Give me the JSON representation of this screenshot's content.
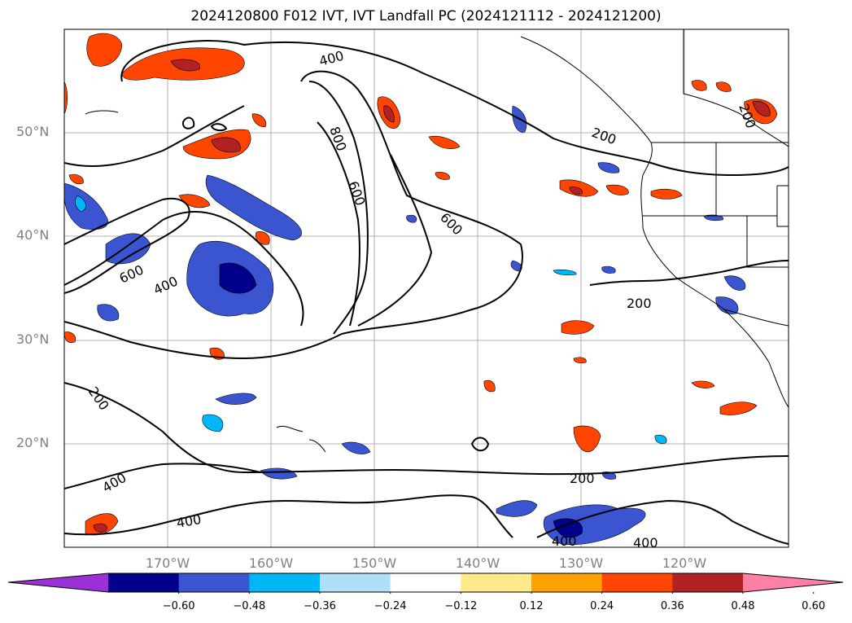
{
  "title": "2024120800 F012 IVT, IVT Landfall PC (2024121112 - 2024121200)",
  "lat_labels": [
    "50°N",
    "40°N",
    "30°N",
    "20°N"
  ],
  "lon_labels": [
    "170°W",
    "160°W",
    "150°W",
    "140°W",
    "130°W",
    "120°W"
  ],
  "contour_labels": [
    "400",
    "800",
    "600",
    "600",
    "200",
    "200",
    "600",
    "400",
    "200",
    "200",
    "400",
    "400",
    "400",
    "400",
    "200"
  ],
  "colorbar": {
    "ticks": [
      "−0.60",
      "−0.48",
      "−0.36",
      "−0.24",
      "−0.12",
      "0.12",
      "0.24",
      "0.36",
      "0.48",
      "0.60"
    ],
    "colors": [
      "#9b30d6",
      "#00008b",
      "#3b55d0",
      "#00b7f5",
      "#aee0f8",
      "#ffffff",
      "#ffe98a",
      "#ffa200",
      "#ff4500",
      "#b22222",
      "#ff80a6"
    ]
  }
}
